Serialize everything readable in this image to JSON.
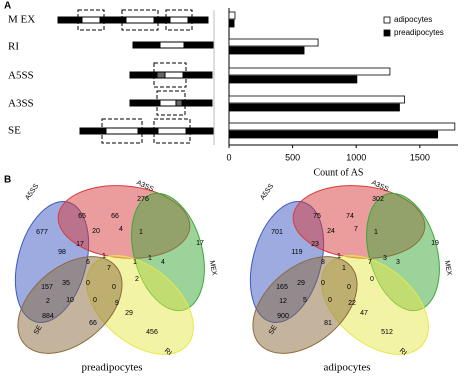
{
  "panel_labels": [
    "A",
    "B"
  ],
  "chart_data": {
    "type": "bar",
    "orientation": "horizontal",
    "categories": [
      "M EX",
      "RI",
      "A5SS",
      "A3SS",
      "SE"
    ],
    "series": [
      {
        "name": "adipocytes",
        "color": "#ffffff",
        "values": [
          47,
          700,
          1265,
          1380,
          1775
        ]
      },
      {
        "name": "preadipocytes",
        "color": "#000000",
        "values": [
          40,
          590,
          1005,
          1340,
          1640
        ]
      }
    ],
    "xlabel": "Count of AS",
    "xlim": [
      0,
      1800
    ],
    "xticks": [
      0,
      500,
      1000,
      1500
    ],
    "legend": "upper right"
  },
  "venns": [
    {
      "title": "preadipocytes",
      "sets": [
        "A5SS",
        "A3SS",
        "MEX",
        "RI",
        "SE"
      ],
      "regions": [
        677,
        276,
        17,
        456,
        884,
        65,
        66,
        20,
        4,
        1,
        98,
        17,
        6,
        1,
        1,
        4,
        157,
        35,
        0,
        0,
        2,
        10,
        2,
        0,
        9,
        29,
        66,
        7,
        1
      ]
    },
    {
      "title": "adipocytes",
      "sets": [
        "A5SS",
        "A3SS",
        "MEX",
        "RI",
        "SE"
      ],
      "regions": [
        701,
        302,
        19,
        512,
        900,
        75,
        74,
        24,
        7,
        1,
        119,
        23,
        8,
        1,
        3,
        3,
        165,
        29,
        0,
        0,
        0,
        5,
        12,
        0,
        22,
        47,
        81,
        1,
        7
      ]
    }
  ]
}
